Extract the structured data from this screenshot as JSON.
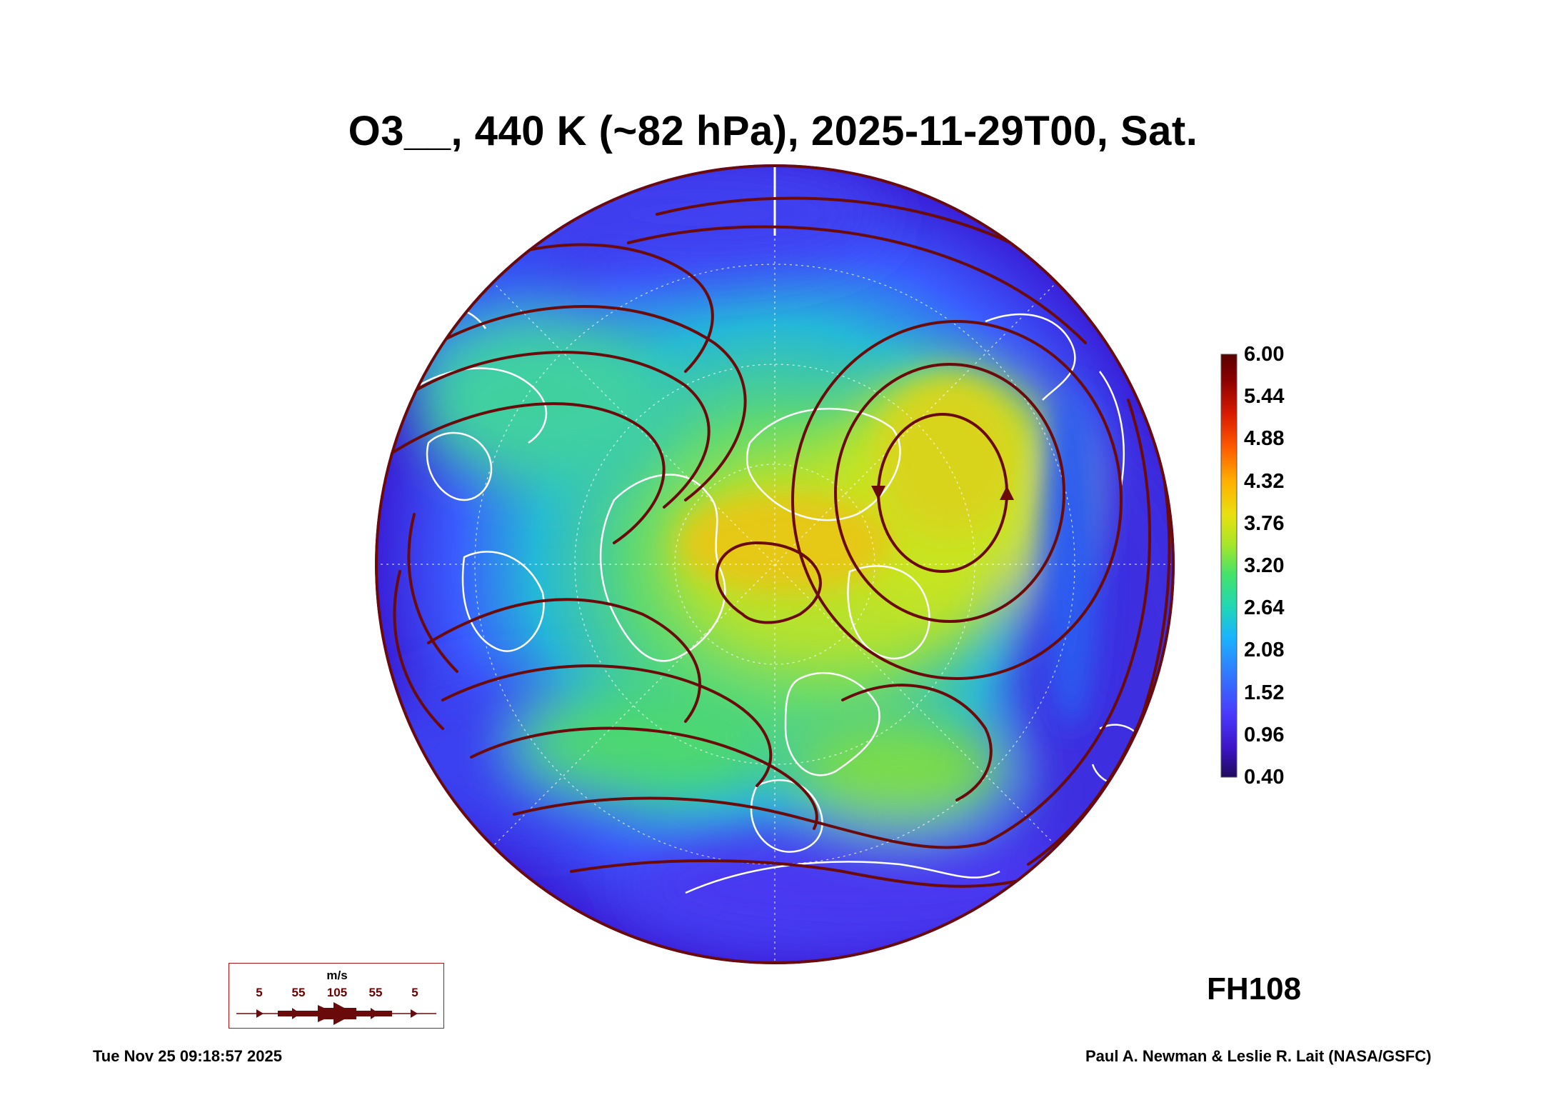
{
  "title": "O3__, 440 K (~82 hPa), 2025-11-29T00, Sat.",
  "forecast_hour_label": "FH108",
  "timestamp": "Tue Nov 25 09:18:57 2025",
  "credit": "Paul A. Newman & Leslie R. Lait (NASA/GSFC)",
  "colorbar": {
    "min": 0.4,
    "max": 6.0,
    "tick_labels": [
      "6.00",
      "5.44",
      "4.88",
      "4.32",
      "3.76",
      "3.20",
      "2.64",
      "2.08",
      "1.52",
      "0.96",
      "0.40"
    ],
    "colors": [
      "#1f0a5a",
      "#3d14c8",
      "#4a3aff",
      "#2f7dff",
      "#19b3ff",
      "#1fd6b8",
      "#44e36a",
      "#a6e628",
      "#e8e010",
      "#ffb000",
      "#ff5a00",
      "#d81a00",
      "#8a0000",
      "#5a0000"
    ]
  },
  "map": {
    "projection": "north-polar-stereographic",
    "field": "ozone mixing ratio",
    "coastline_color": "#ffffff",
    "streamline_color": "#6b0a0a"
  },
  "wind_legend": {
    "unit": "m/s",
    "speeds": [
      "5",
      "55",
      "105",
      "55",
      "5"
    ]
  }
}
